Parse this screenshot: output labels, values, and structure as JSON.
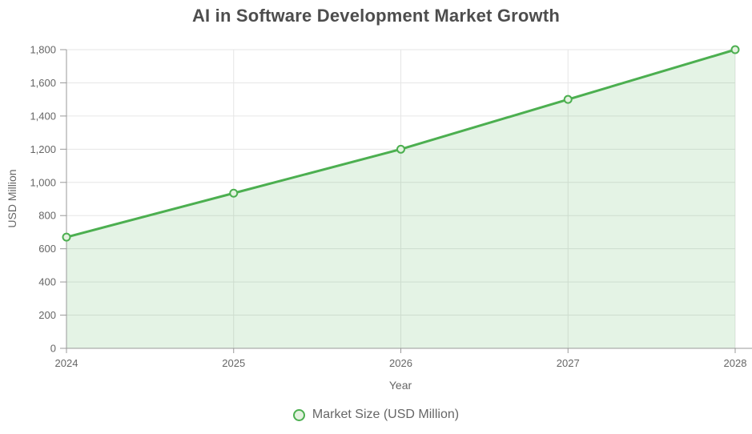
{
  "chart_data": {
    "type": "area",
    "title": "AI in Software Development Market Growth",
    "x_label": "Year",
    "y_label": "USD Million",
    "x": [
      "2024",
      "2025",
      "2026",
      "2027",
      "2028"
    ],
    "series": [
      {
        "name": "Market Size (USD Million)",
        "values": [
          670,
          935,
          1200,
          1500,
          1800
        ]
      }
    ],
    "ylim": [
      0,
      1800
    ],
    "y_ticks": [
      0,
      200,
      400,
      600,
      800,
      1000,
      1200,
      1400,
      1600,
      1800
    ],
    "y_tick_labels": [
      "0",
      "200",
      "400",
      "600",
      "800",
      "1,000",
      "1,200",
      "1,400",
      "1,600",
      "1,800"
    ],
    "grid": true,
    "legend_position": "bottom",
    "legend": [
      "Market Size (USD Million)"
    ],
    "colors": {
      "line": "#4caf50",
      "area_fill": "rgba(76,175,80,0.15)",
      "marker_fill": "#e4f2e0",
      "grid_line": "#e6e6e6",
      "axis_line": "#999999",
      "tick_text": "#666666",
      "axis_name_text": "#666666",
      "legend_text": "#666666",
      "title_text": "#4d4d4d"
    }
  }
}
